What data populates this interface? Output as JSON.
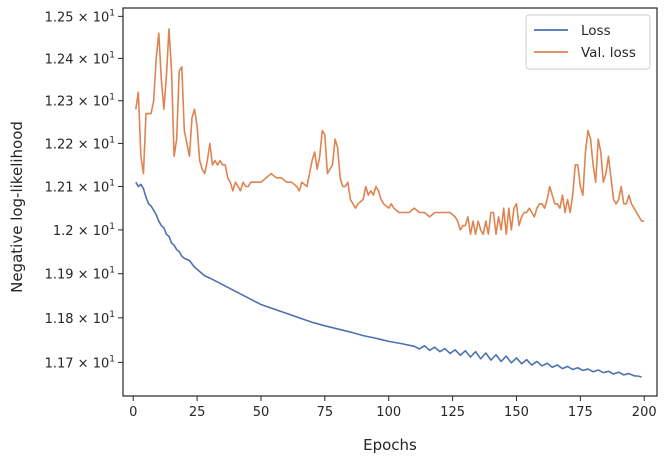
{
  "chart_data": {
    "type": "line",
    "xlabel": "Epochs",
    "ylabel": "Negative log-likelihood",
    "xlim": [
      -4,
      205
    ],
    "ylim": [
      11.625,
      12.52
    ],
    "y_scale": "log",
    "x_ticks": [
      0,
      25,
      50,
      75,
      100,
      125,
      150,
      175,
      200
    ],
    "y_ticks": [
      {
        "value": 11.7,
        "mant": "1.17",
        "exp": "1"
      },
      {
        "value": 11.8,
        "mant": "1.18",
        "exp": "1"
      },
      {
        "value": 11.9,
        "mant": "1.19",
        "exp": "1"
      },
      {
        "value": 12.0,
        "mant": "1.2",
        "exp": "1"
      },
      {
        "value": 12.1,
        "mant": "1.21",
        "exp": "1"
      },
      {
        "value": 12.2,
        "mant": "1.22",
        "exp": "1"
      },
      {
        "value": 12.3,
        "mant": "1.23",
        "exp": "1"
      },
      {
        "value": 12.4,
        "mant": "1.24",
        "exp": "1"
      },
      {
        "value": 12.5,
        "mant": "1.25",
        "exp": "1"
      }
    ],
    "times_symbol": "×",
    "tick_base": "10",
    "grid": false,
    "legend_position": "top-right",
    "series": [
      {
        "name": "Loss",
        "color": "#4c72b0",
        "points": [
          [
            1,
            12.11
          ],
          [
            2,
            12.1
          ],
          [
            3,
            12.105
          ],
          [
            4,
            12.095
          ],
          [
            5,
            12.075
          ],
          [
            6,
            12.06
          ],
          [
            7,
            12.055
          ],
          [
            8,
            12.045
          ],
          [
            9,
            12.035
          ],
          [
            10,
            12.02
          ],
          [
            11,
            12.01
          ],
          [
            12,
            12.005
          ],
          [
            13,
            11.99
          ],
          [
            14,
            11.985
          ],
          [
            15,
            11.97
          ],
          [
            16,
            11.965
          ],
          [
            17,
            11.955
          ],
          [
            18,
            11.95
          ],
          [
            19,
            11.94
          ],
          [
            20,
            11.935
          ],
          [
            22,
            11.93
          ],
          [
            24,
            11.915
          ],
          [
            26,
            11.905
          ],
          [
            28,
            11.895
          ],
          [
            30,
            11.89
          ],
          [
            35,
            11.875
          ],
          [
            40,
            11.86
          ],
          [
            45,
            11.845
          ],
          [
            50,
            11.83
          ],
          [
            55,
            11.82
          ],
          [
            60,
            11.81
          ],
          [
            65,
            11.8
          ],
          [
            70,
            11.79
          ],
          [
            75,
            11.782
          ],
          [
            80,
            11.775
          ],
          [
            85,
            11.768
          ],
          [
            90,
            11.76
          ],
          [
            95,
            11.754
          ],
          [
            100,
            11.747
          ],
          [
            105,
            11.742
          ],
          [
            110,
            11.736
          ],
          [
            112,
            11.73
          ],
          [
            114,
            11.737
          ],
          [
            116,
            11.727
          ],
          [
            118,
            11.734
          ],
          [
            120,
            11.724
          ],
          [
            122,
            11.731
          ],
          [
            124,
            11.72
          ],
          [
            126,
            11.728
          ],
          [
            128,
            11.716
          ],
          [
            130,
            11.726
          ],
          [
            132,
            11.712
          ],
          [
            134,
            11.724
          ],
          [
            136,
            11.708
          ],
          [
            138,
            11.721
          ],
          [
            140,
            11.705
          ],
          [
            142,
            11.717
          ],
          [
            144,
            11.702
          ],
          [
            146,
            11.714
          ],
          [
            148,
            11.699
          ],
          [
            150,
            11.71
          ],
          [
            152,
            11.697
          ],
          [
            154,
            11.706
          ],
          [
            156,
            11.694
          ],
          [
            158,
            11.702
          ],
          [
            160,
            11.692
          ],
          [
            162,
            11.698
          ],
          [
            164,
            11.689
          ],
          [
            166,
            11.694
          ],
          [
            168,
            11.686
          ],
          [
            170,
            11.691
          ],
          [
            172,
            11.684
          ],
          [
            174,
            11.688
          ],
          [
            176,
            11.682
          ],
          [
            178,
            11.685
          ],
          [
            180,
            11.679
          ],
          [
            182,
            11.683
          ],
          [
            184,
            11.677
          ],
          [
            186,
            11.68
          ],
          [
            188,
            11.674
          ],
          [
            190,
            11.678
          ],
          [
            192,
            11.672
          ],
          [
            194,
            11.675
          ],
          [
            196,
            11.67
          ],
          [
            198,
            11.669
          ],
          [
            199,
            11.667
          ]
        ]
      },
      {
        "name": "Val. loss",
        "color": "#dd8452",
        "points": [
          [
            1,
            12.28
          ],
          [
            2,
            12.32
          ],
          [
            3,
            12.17
          ],
          [
            4,
            12.13
          ],
          [
            5,
            12.27
          ],
          [
            6,
            12.27
          ],
          [
            7,
            12.27
          ],
          [
            8,
            12.3
          ],
          [
            9,
            12.4
          ],
          [
            10,
            12.46
          ],
          [
            11,
            12.35
          ],
          [
            12,
            12.28
          ],
          [
            13,
            12.36
          ],
          [
            14,
            12.47
          ],
          [
            15,
            12.37
          ],
          [
            16,
            12.17
          ],
          [
            17,
            12.21
          ],
          [
            18,
            12.37
          ],
          [
            19,
            12.38
          ],
          [
            20,
            12.23
          ],
          [
            21,
            12.2
          ],
          [
            22,
            12.17
          ],
          [
            23,
            12.26
          ],
          [
            24,
            12.28
          ],
          [
            25,
            12.24
          ],
          [
            26,
            12.16
          ],
          [
            27,
            12.14
          ],
          [
            28,
            12.13
          ],
          [
            29,
            12.16
          ],
          [
            30,
            12.2
          ],
          [
            31,
            12.15
          ],
          [
            32,
            12.16
          ],
          [
            33,
            12.15
          ],
          [
            34,
            12.16
          ],
          [
            35,
            12.15
          ],
          [
            36,
            12.15
          ],
          [
            37,
            12.12
          ],
          [
            38,
            12.11
          ],
          [
            39,
            12.09
          ],
          [
            40,
            12.11
          ],
          [
            41,
            12.1
          ],
          [
            42,
            12.09
          ],
          [
            43,
            12.11
          ],
          [
            44,
            12.1
          ],
          [
            45,
            12.1
          ],
          [
            46,
            12.11
          ],
          [
            48,
            12.11
          ],
          [
            50,
            12.11
          ],
          [
            52,
            12.12
          ],
          [
            54,
            12.13
          ],
          [
            56,
            12.12
          ],
          [
            58,
            12.12
          ],
          [
            60,
            12.11
          ],
          [
            62,
            12.11
          ],
          [
            64,
            12.1
          ],
          [
            65,
            12.09
          ],
          [
            66,
            12.11
          ],
          [
            68,
            12.1
          ],
          [
            70,
            12.16
          ],
          [
            71,
            12.18
          ],
          [
            72,
            12.14
          ],
          [
            73,
            12.17
          ],
          [
            74,
            12.23
          ],
          [
            75,
            12.22
          ],
          [
            76,
            12.13
          ],
          [
            77,
            12.14
          ],
          [
            78,
            12.15
          ],
          [
            79,
            12.21
          ],
          [
            80,
            12.19
          ],
          [
            81,
            12.12
          ],
          [
            82,
            12.1
          ],
          [
            83,
            12.1
          ],
          [
            84,
            12.11
          ],
          [
            85,
            12.07
          ],
          [
            86,
            12.06
          ],
          [
            87,
            12.05
          ],
          [
            88,
            12.06
          ],
          [
            90,
            12.07
          ],
          [
            91,
            12.1
          ],
          [
            92,
            12.08
          ],
          [
            93,
            12.09
          ],
          [
            94,
            12.08
          ],
          [
            95,
            12.1
          ],
          [
            96,
            12.09
          ],
          [
            97,
            12.07
          ],
          [
            98,
            12.06
          ],
          [
            100,
            12.05
          ],
          [
            101,
            12.06
          ],
          [
            102,
            12.05
          ],
          [
            104,
            12.04
          ],
          [
            106,
            12.04
          ],
          [
            108,
            12.04
          ],
          [
            110,
            12.05
          ],
          [
            112,
            12.04
          ],
          [
            114,
            12.04
          ],
          [
            116,
            12.03
          ],
          [
            118,
            12.04
          ],
          [
            120,
            12.04
          ],
          [
            122,
            12.04
          ],
          [
            124,
            12.04
          ],
          [
            126,
            12.03
          ],
          [
            127,
            12.02
          ],
          [
            128,
            12.0
          ],
          [
            129,
            12.01
          ],
          [
            130,
            12.01
          ],
          [
            131,
            12.03
          ],
          [
            132,
            11.99
          ],
          [
            133,
            12.02
          ],
          [
            134,
            11.99
          ],
          [
            135,
            12.02
          ],
          [
            136,
            12.0
          ],
          [
            137,
            11.99
          ],
          [
            138,
            12.02
          ],
          [
            139,
            11.99
          ],
          [
            140,
            12.04
          ],
          [
            141,
            12.04
          ],
          [
            142,
            11.99
          ],
          [
            143,
            12.03
          ],
          [
            144,
            12.0
          ],
          [
            145,
            12.05
          ],
          [
            146,
            11.99
          ],
          [
            147,
            12.05
          ],
          [
            148,
            12.0
          ],
          [
            149,
            12.05
          ],
          [
            150,
            12.06
          ],
          [
            151,
            12.01
          ],
          [
            152,
            12.03
          ],
          [
            153,
            12.04
          ],
          [
            154,
            12.04
          ],
          [
            155,
            12.05
          ],
          [
            156,
            12.04
          ],
          [
            157,
            12.03
          ],
          [
            158,
            12.05
          ],
          [
            159,
            12.06
          ],
          [
            160,
            12.06
          ],
          [
            161,
            12.05
          ],
          [
            162,
            12.07
          ],
          [
            163,
            12.1
          ],
          [
            164,
            12.08
          ],
          [
            165,
            12.06
          ],
          [
            166,
            12.06
          ],
          [
            167,
            12.05
          ],
          [
            168,
            12.08
          ],
          [
            169,
            12.04
          ],
          [
            170,
            12.07
          ],
          [
            171,
            12.04
          ],
          [
            172,
            12.08
          ],
          [
            173,
            12.15
          ],
          [
            174,
            12.15
          ],
          [
            175,
            12.1
          ],
          [
            176,
            12.08
          ],
          [
            177,
            12.18
          ],
          [
            178,
            12.23
          ],
          [
            179,
            12.21
          ],
          [
            180,
            12.15
          ],
          [
            181,
            12.11
          ],
          [
            182,
            12.21
          ],
          [
            183,
            12.18
          ],
          [
            184,
            12.11
          ],
          [
            185,
            12.13
          ],
          [
            186,
            12.17
          ],
          [
            187,
            12.12
          ],
          [
            188,
            12.07
          ],
          [
            189,
            12.06
          ],
          [
            190,
            12.07
          ],
          [
            191,
            12.1
          ],
          [
            192,
            12.06
          ],
          [
            193,
            12.06
          ],
          [
            194,
            12.08
          ],
          [
            195,
            12.06
          ],
          [
            196,
            12.05
          ],
          [
            197,
            12.04
          ],
          [
            198,
            12.03
          ],
          [
            199,
            12.02
          ],
          [
            200,
            12.02
          ]
        ]
      }
    ]
  }
}
